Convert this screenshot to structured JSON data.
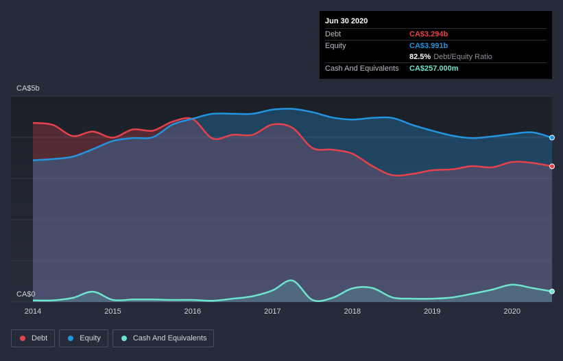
{
  "colors": {
    "debt": "#e6424d",
    "equity": "#2394df",
    "cash": "#6fe4cd",
    "plot_bg": "#1c2029",
    "grid": "#353b48",
    "axis_text": "#d0d4dc"
  },
  "tooltip": {
    "date": "Jun 30 2020",
    "debt_label": "Debt",
    "debt_value": "CA$3.294b",
    "equity_label": "Equity",
    "equity_value": "CA$3.991b",
    "ratio_value": "82.5%",
    "ratio_label": "Debt/Equity Ratio",
    "cash_label": "Cash And Equivalents",
    "cash_value": "CA$257.000m"
  },
  "legend": {
    "debt_label": "Debt",
    "equity_label": "Equity",
    "cash_label": "Cash And Equivalents"
  },
  "chart_data": {
    "type": "area",
    "title": "",
    "xlabel": "",
    "ylabel": "",
    "y_unit": "CA$ billions",
    "ylim": [
      0,
      5
    ],
    "y_tick_labels": [
      {
        "value": 5,
        "label": "CA$5b"
      },
      {
        "value": 0,
        "label": "CA$0"
      }
    ],
    "xlim": [
      2014.0,
      2020.5
    ],
    "x_tick_labels": [
      {
        "value": 2014,
        "label": "2014"
      },
      {
        "value": 2015,
        "label": "2015"
      },
      {
        "value": 2016,
        "label": "2016"
      },
      {
        "value": 2017,
        "label": "2017"
      },
      {
        "value": 2018,
        "label": "2018"
      },
      {
        "value": 2019,
        "label": "2019"
      },
      {
        "value": 2020,
        "label": "2020"
      }
    ],
    "series": [
      {
        "name": "Debt",
        "points": [
          [
            2014.0,
            4.35
          ],
          [
            2014.25,
            4.3
          ],
          [
            2014.5,
            4.03
          ],
          [
            2014.75,
            4.14
          ],
          [
            2015.0,
            3.99
          ],
          [
            2015.25,
            4.19
          ],
          [
            2015.5,
            4.16
          ],
          [
            2015.75,
            4.38
          ],
          [
            2016.0,
            4.44
          ],
          [
            2016.25,
            3.97
          ],
          [
            2016.5,
            4.06
          ],
          [
            2016.75,
            4.06
          ],
          [
            2017.0,
            4.31
          ],
          [
            2017.25,
            4.23
          ],
          [
            2017.5,
            3.74
          ],
          [
            2017.75,
            3.7
          ],
          [
            2018.0,
            3.6
          ],
          [
            2018.25,
            3.3
          ],
          [
            2018.5,
            3.08
          ],
          [
            2018.75,
            3.11
          ],
          [
            2019.0,
            3.2
          ],
          [
            2019.25,
            3.22
          ],
          [
            2019.5,
            3.3
          ],
          [
            2019.75,
            3.27
          ],
          [
            2020.0,
            3.4
          ],
          [
            2020.25,
            3.38
          ],
          [
            2020.5,
            3.294
          ]
        ]
      },
      {
        "name": "Equity",
        "points": [
          [
            2014.0,
            3.44
          ],
          [
            2014.25,
            3.47
          ],
          [
            2014.5,
            3.53
          ],
          [
            2014.75,
            3.71
          ],
          [
            2015.0,
            3.91
          ],
          [
            2015.25,
            3.98
          ],
          [
            2015.5,
            4.0
          ],
          [
            2015.75,
            4.31
          ],
          [
            2016.0,
            4.45
          ],
          [
            2016.25,
            4.57
          ],
          [
            2016.5,
            4.57
          ],
          [
            2016.75,
            4.57
          ],
          [
            2017.0,
            4.67
          ],
          [
            2017.25,
            4.69
          ],
          [
            2017.5,
            4.61
          ],
          [
            2017.75,
            4.48
          ],
          [
            2018.0,
            4.43
          ],
          [
            2018.25,
            4.47
          ],
          [
            2018.5,
            4.47
          ],
          [
            2018.75,
            4.3
          ],
          [
            2019.0,
            4.16
          ],
          [
            2019.25,
            4.04
          ],
          [
            2019.5,
            3.98
          ],
          [
            2019.75,
            4.02
          ],
          [
            2020.0,
            4.08
          ],
          [
            2020.25,
            4.12
          ],
          [
            2020.5,
            3.991
          ]
        ]
      },
      {
        "name": "Cash And Equivalents",
        "points": [
          [
            2014.0,
            0.04
          ],
          [
            2014.25,
            0.04
          ],
          [
            2014.5,
            0.1
          ],
          [
            2014.75,
            0.25
          ],
          [
            2015.0,
            0.05
          ],
          [
            2015.25,
            0.06
          ],
          [
            2015.5,
            0.06
          ],
          [
            2015.75,
            0.05
          ],
          [
            2016.0,
            0.05
          ],
          [
            2016.25,
            0.03
          ],
          [
            2016.5,
            0.08
          ],
          [
            2016.75,
            0.14
          ],
          [
            2017.0,
            0.28
          ],
          [
            2017.25,
            0.52
          ],
          [
            2017.5,
            0.05
          ],
          [
            2017.75,
            0.1
          ],
          [
            2018.0,
            0.33
          ],
          [
            2018.25,
            0.34
          ],
          [
            2018.5,
            0.11
          ],
          [
            2018.75,
            0.08
          ],
          [
            2019.0,
            0.08
          ],
          [
            2019.25,
            0.11
          ],
          [
            2019.5,
            0.2
          ],
          [
            2019.75,
            0.3
          ],
          [
            2020.0,
            0.42
          ],
          [
            2020.25,
            0.34
          ],
          [
            2020.5,
            0.257
          ]
        ]
      }
    ]
  }
}
